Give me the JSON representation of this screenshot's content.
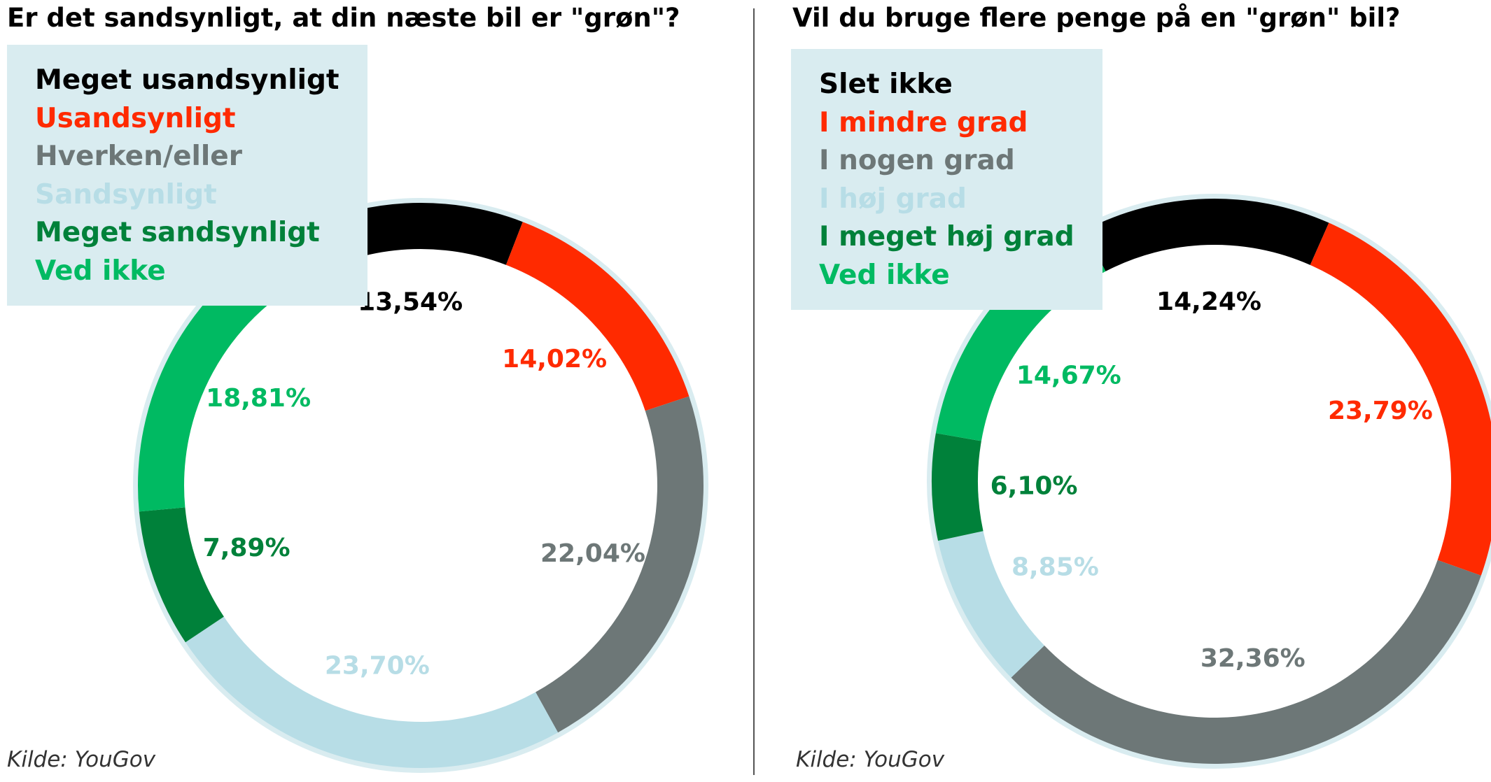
{
  "chart_data": [
    {
      "type": "donut",
      "title": "Er det sandsynligt, at din næste bil er \"grøn\"?",
      "source": "Kilde: YouGov",
      "legend_placement": "top-left",
      "series": [
        {
          "name": "Meget usandsynligt",
          "value": 13.54,
          "label": "13,54%",
          "color": "#000000"
        },
        {
          "name": "Usandsynligt",
          "value": 14.02,
          "label": "14,02%",
          "color": "#ff2a00"
        },
        {
          "name": "Hverken/eller",
          "value": 22.04,
          "label": "22,04%",
          "color": "#6d7777"
        },
        {
          "name": "Sandsynligt",
          "value": 23.7,
          "label": "23,70%",
          "color": "#b7dde6"
        },
        {
          "name": "Meget sandsynligt",
          "value": 7.89,
          "label": "7,89%",
          "color": "#00813a"
        },
        {
          "name": "Ved ikke",
          "value": 18.81,
          "label": "18,81%",
          "color": "#00ba62"
        }
      ]
    },
    {
      "type": "donut",
      "title": "Vil du bruge flere penge på en \"grøn\" bil?",
      "source": "Kilde: YouGov",
      "legend_placement": "top-left",
      "series": [
        {
          "name": "Slet ikke",
          "value": 14.24,
          "label": "14,24%",
          "color": "#000000"
        },
        {
          "name": "I mindre grad",
          "value": 23.79,
          "label": "23,79%",
          "color": "#ff2a00"
        },
        {
          "name": "I nogen grad",
          "value": 32.36,
          "label": "32,36%",
          "color": "#6d7777"
        },
        {
          "name": "I høj grad",
          "value": 8.85,
          "label": "8,85%",
          "color": "#b7dde6"
        },
        {
          "name": "I meget høj grad",
          "value": 6.1,
          "label": "6,10%",
          "color": "#00813a"
        },
        {
          "name": "Ved ikke",
          "value": 14.67,
          "label": "14,67%",
          "color": "#00ba62"
        }
      ]
    }
  ],
  "colors": {
    "ring_background": "#d9ecf0",
    "legend_background": "#d9ecf0",
    "divider": "#555555"
  }
}
